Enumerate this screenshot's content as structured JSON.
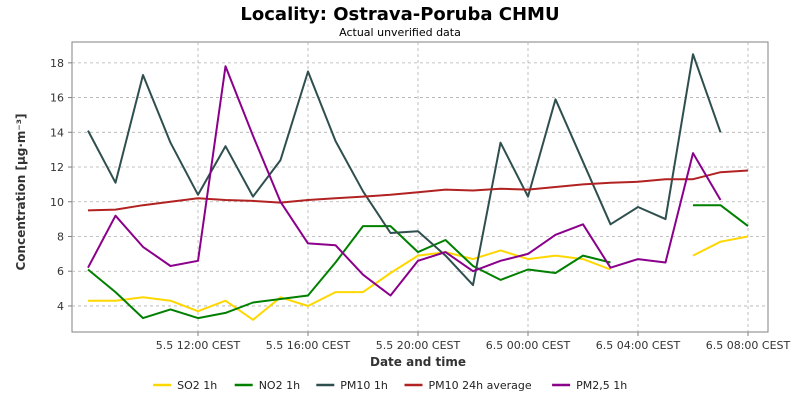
{
  "chart_data": {
    "type": "line",
    "title": "Locality: Ostrava-Poruba CHMU",
    "subtitle": "Actual unverified data",
    "xlabel": "Date and time",
    "ylabel": "Concentration [µg·m⁻³]",
    "x": [
      "5.5 08:00",
      "5.5 09:00",
      "5.5 10:00",
      "5.5 11:00",
      "5.5 12:00",
      "5.5 13:00",
      "5.5 14:00",
      "5.5 15:00",
      "5.5 16:00",
      "5.5 17:00",
      "5.5 18:00",
      "5.5 19:00",
      "5.5 20:00",
      "5.5 21:00",
      "5.5 22:00",
      "5.5 23:00",
      "6.5 00:00",
      "6.5 01:00",
      "6.5 02:00",
      "6.5 03:00",
      "6.5 04:00",
      "6.5 05:00",
      "6.5 06:00",
      "6.5 07:00",
      "6.5 08:00"
    ],
    "x_ticks": [
      "5.5 12:00 CEST",
      "5.5 16:00 CEST",
      "5.5 20:00 CEST",
      "6.5 00:00 CEST",
      "6.5 04:00 CEST",
      "6.5 08:00 CEST"
    ],
    "x_tick_index": [
      4,
      8,
      12,
      16,
      20,
      24
    ],
    "ylim": [
      2.5,
      19.2
    ],
    "y_ticks": [
      4,
      6,
      8,
      10,
      12,
      14,
      16,
      18
    ],
    "grid": true,
    "legend_position": "bottom",
    "series": [
      {
        "name": "SO2 1h",
        "color": "#ffd700",
        "values": [
          4.3,
          4.3,
          4.5,
          4.3,
          3.7,
          4.3,
          3.2,
          4.5,
          4.0,
          4.8,
          4.8,
          5.9,
          6.9,
          7.1,
          6.7,
          7.2,
          6.7,
          6.9,
          6.7,
          6.1,
          null,
          null,
          6.9,
          7.7,
          8.0
        ]
      },
      {
        "name": "NO2 1h",
        "color": "#008000",
        "values": [
          6.1,
          4.8,
          3.3,
          3.8,
          3.3,
          3.6,
          4.2,
          4.4,
          4.6,
          6.5,
          8.6,
          8.6,
          7.1,
          7.8,
          6.3,
          5.5,
          6.1,
          5.9,
          6.9,
          6.5,
          null,
          null,
          9.8,
          9.8,
          8.6
        ]
      },
      {
        "name": "PM10 1h",
        "color": "#2f4f4f",
        "values": [
          14.1,
          11.1,
          17.3,
          13.4,
          10.4,
          13.2,
          10.3,
          12.4,
          17.5,
          13.5,
          10.6,
          8.2,
          8.3,
          6.9,
          5.2,
          13.4,
          10.3,
          15.9,
          12.3,
          8.7,
          9.7,
          9.0,
          18.5,
          14.0,
          null
        ]
      },
      {
        "name": "PM10 24h average",
        "color": "#b22222",
        "values": [
          9.5,
          9.55,
          9.8,
          10.0,
          10.2,
          10.1,
          10.05,
          9.95,
          10.1,
          10.2,
          10.3,
          10.4,
          10.55,
          10.7,
          10.65,
          10.75,
          10.7,
          10.85,
          11.0,
          11.1,
          11.15,
          11.3,
          11.3,
          11.7,
          11.8
        ]
      },
      {
        "name": "PM2,5 1h",
        "color": "#8b008b",
        "values": [
          6.2,
          9.2,
          7.4,
          6.3,
          6.6,
          17.8,
          13.8,
          10.0,
          7.6,
          7.5,
          5.8,
          4.6,
          6.6,
          7.1,
          6.0,
          6.6,
          7.0,
          8.1,
          8.7,
          6.2,
          6.7,
          6.5,
          12.8,
          10.1,
          null
        ]
      }
    ]
  }
}
